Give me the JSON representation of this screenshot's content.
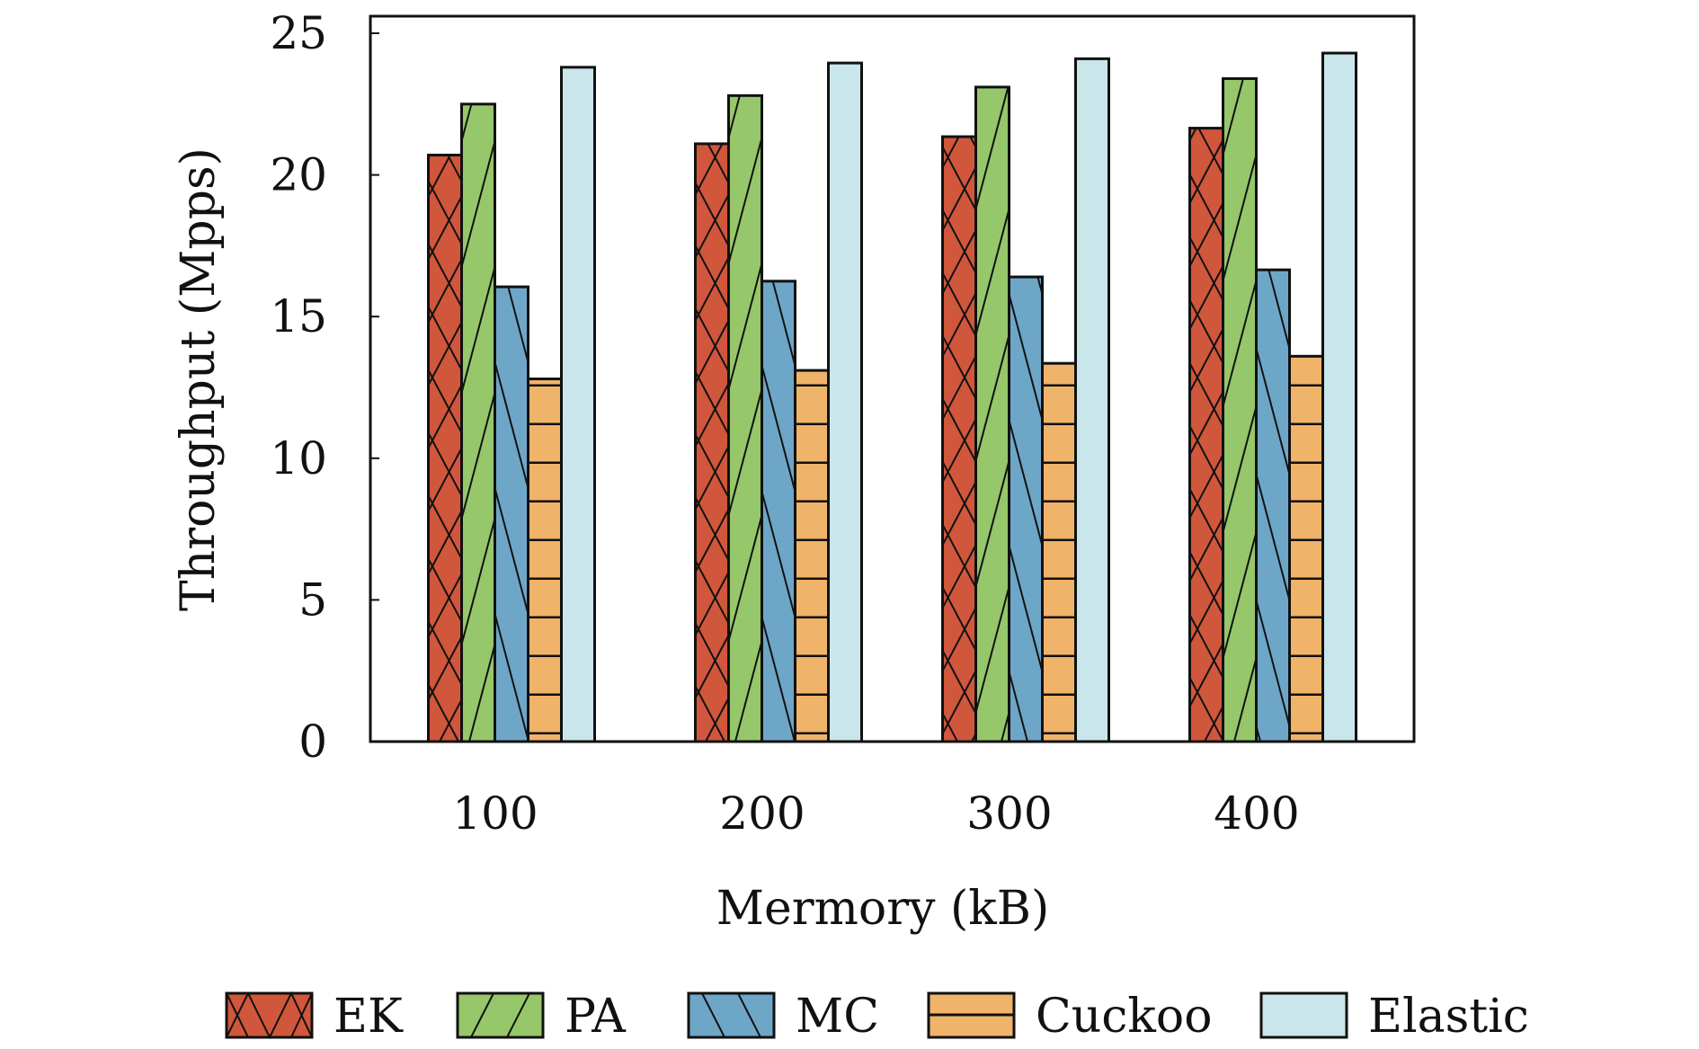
{
  "chart_data": {
    "type": "bar",
    "title": "",
    "xlabel": "Mermory (kB)",
    "ylabel": "Throughput (Mpps)",
    "categories": [
      "100",
      "200",
      "300",
      "400"
    ],
    "ylim": [
      0,
      25
    ],
    "yticks": [
      "0",
      "5",
      "10",
      "15",
      "20",
      "25"
    ],
    "grid": false,
    "legend_position": "bottom",
    "series": [
      {
        "name": "EK",
        "color": "#d0573c",
        "hatch": "cross",
        "values": [
          20.7,
          21.1,
          21.35,
          21.65
        ]
      },
      {
        "name": "PA",
        "color": "#96c76a",
        "hatch": "forward",
        "values": [
          22.5,
          22.8,
          23.1,
          23.4
        ]
      },
      {
        "name": "MC",
        "color": "#6ea6c8",
        "hatch": "back",
        "values": [
          16.05,
          16.25,
          16.4,
          16.65
        ]
      },
      {
        "name": "Cuckoo",
        "color": "#f0b36a",
        "hatch": "horizontal",
        "values": [
          12.8,
          13.1,
          13.35,
          13.6
        ]
      },
      {
        "name": "Elastic",
        "color": "#c9e6ea",
        "hatch": "none",
        "values": [
          23.8,
          23.95,
          24.1,
          24.3
        ]
      }
    ]
  }
}
